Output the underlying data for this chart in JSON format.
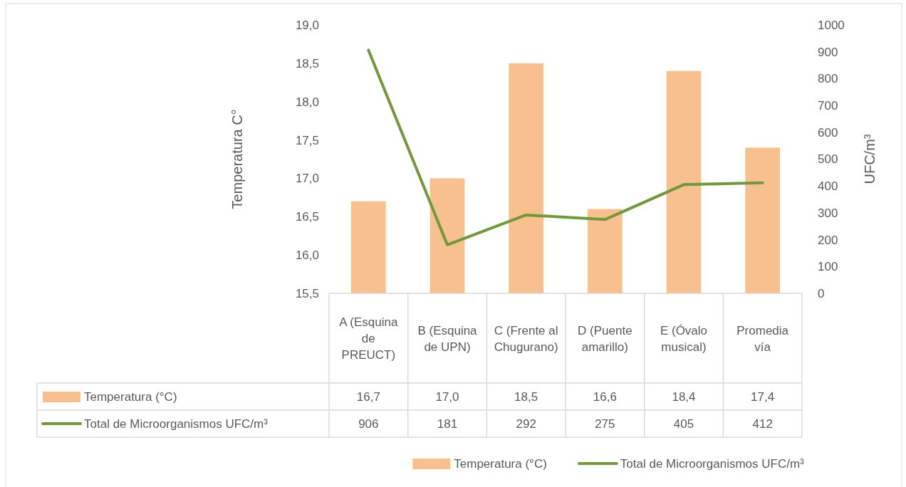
{
  "chart_data": {
    "type": "bar",
    "categories": [
      "A (Esquina de PREUCT)",
      "B (Esquina de UPN)",
      "C (Frente al Chugurano)",
      "D (Puente amarillo)",
      "E (Óvalo musical)",
      "Promedia vía"
    ],
    "series": [
      {
        "name": "Temperatura (°C)",
        "color": "#f9c08f",
        "values": [
          16.7,
          17.0,
          18.5,
          16.6,
          18.4,
          17.4
        ],
        "value_labels": [
          "16,7",
          "17,0",
          "18,5",
          "16,6",
          "18,4",
          "17,4"
        ]
      },
      {
        "name": "Total de Microorganismos UFC/m³",
        "type": "line",
        "axis": "y2",
        "color": "#71983a",
        "values": [
          906,
          181,
          292,
          275,
          405,
          412
        ],
        "value_labels": [
          "906",
          "181",
          "292",
          "275",
          "405",
          "412"
        ]
      }
    ],
    "ylabel": "Temperatura C°",
    "y2label": "UFC/m³",
    "ylim": [
      15.5,
      19
    ],
    "yticks": [
      {
        "value": 15.5,
        "label": "15,5"
      },
      {
        "value": 16,
        "label": "16,0"
      },
      {
        "value": 16.5,
        "label": "16,5"
      },
      {
        "value": 17,
        "label": "17,0"
      },
      {
        "value": 17.5,
        "label": "17,5"
      },
      {
        "value": 18,
        "label": "18,0"
      },
      {
        "value": 18.5,
        "label": "18,5"
      },
      {
        "value": 19,
        "label": "19,0"
      }
    ],
    "y2lim": [
      0,
      1000
    ],
    "y2ticks": [
      0,
      100,
      200,
      300,
      400,
      500,
      600,
      700,
      800,
      900,
      1000
    ],
    "legend": "bottom",
    "marker": "none",
    "line_style": "solid"
  }
}
